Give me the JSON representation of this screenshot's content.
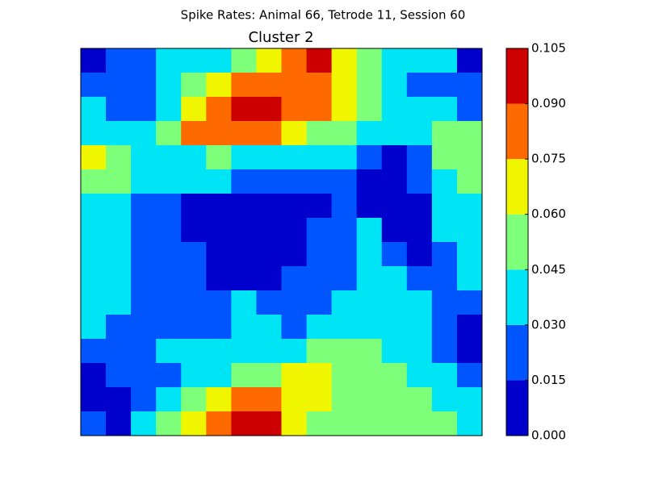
{
  "chart_data": {
    "type": "contourf",
    "suptitle": "Spike Rates: Animal 66, Tetrode 11, Session 60",
    "title": "Cluster 2",
    "levels": [
      {
        "value": 0,
        "label": "0.000"
      },
      {
        "value": 0.015,
        "label": "0.015"
      },
      {
        "value": 0.03,
        "label": "0.030"
      },
      {
        "value": 0.045,
        "label": "0.045"
      },
      {
        "value": 0.06,
        "label": "0.060"
      },
      {
        "value": 0.075,
        "label": "0.075"
      },
      {
        "value": 0.09,
        "label": "0.090"
      },
      {
        "value": 0.105,
        "label": "0.105"
      }
    ],
    "colors": [
      "#0000cc",
      "#0055ff",
      "#00e5f5",
      "#7dff7a",
      "#f0f500",
      "#ff6a00",
      "#cc0000"
    ],
    "z": [
      [
        0.0075,
        0.0225,
        0.0225,
        0.0375,
        0.0375,
        0.0375,
        0.0525,
        0.0675,
        0.0825,
        0.0975,
        0.0675,
        0.0525,
        0.0375,
        0.0375,
        0.0375,
        0.0075
      ],
      [
        0.0225,
        0.0225,
        0.0225,
        0.0375,
        0.0525,
        0.0675,
        0.0825,
        0.0825,
        0.0825,
        0.0825,
        0.0675,
        0.0525,
        0.0375,
        0.0225,
        0.0225,
        0.0225
      ],
      [
        0.0375,
        0.0225,
        0.0225,
        0.0375,
        0.0675,
        0.0825,
        0.0975,
        0.0975,
        0.0825,
        0.0825,
        0.0675,
        0.0525,
        0.0375,
        0.0375,
        0.0375,
        0.0225
      ],
      [
        0.0375,
        0.0375,
        0.0375,
        0.0525,
        0.0825,
        0.0825,
        0.0825,
        0.0825,
        0.0675,
        0.0525,
        0.0525,
        0.0375,
        0.0375,
        0.0375,
        0.0525,
        0.0525
      ],
      [
        0.0675,
        0.0525,
        0.0375,
        0.0375,
        0.0375,
        0.0525,
        0.0375,
        0.0375,
        0.0375,
        0.0375,
        0.0375,
        0.0225,
        0.0075,
        0.0225,
        0.0525,
        0.0525
      ],
      [
        0.0525,
        0.0525,
        0.0375,
        0.0375,
        0.0375,
        0.0375,
        0.0225,
        0.0225,
        0.0225,
        0.0225,
        0.0225,
        0.0075,
        0.0075,
        0.0225,
        0.0375,
        0.0525
      ],
      [
        0.0375,
        0.0375,
        0.0225,
        0.0225,
        0.0075,
        0.0075,
        0.0075,
        0.0075,
        0.0075,
        0.0075,
        0.0225,
        0.0075,
        0.0075,
        0.0075,
        0.0375,
        0.0375
      ],
      [
        0.0375,
        0.0375,
        0.0225,
        0.0225,
        0.0075,
        0.0075,
        0.0075,
        0.0075,
        0.0075,
        0.0225,
        0.0225,
        0.0375,
        0.0075,
        0.0075,
        0.0375,
        0.0375
      ],
      [
        0.0375,
        0.0375,
        0.0225,
        0.0225,
        0.0225,
        0.0075,
        0.0075,
        0.0075,
        0.0075,
        0.0225,
        0.0225,
        0.0375,
        0.0225,
        0.0075,
        0.0225,
        0.0375
      ],
      [
        0.0375,
        0.0375,
        0.0225,
        0.0225,
        0.0225,
        0.0075,
        0.0075,
        0.0075,
        0.0225,
        0.0225,
        0.0225,
        0.0375,
        0.0375,
        0.0225,
        0.0225,
        0.0375
      ],
      [
        0.0375,
        0.0375,
        0.0225,
        0.0225,
        0.0225,
        0.0225,
        0.0375,
        0.0225,
        0.0225,
        0.0225,
        0.0375,
        0.0375,
        0.0375,
        0.0375,
        0.0225,
        0.0225
      ],
      [
        0.0375,
        0.0225,
        0.0225,
        0.0225,
        0.0225,
        0.0225,
        0.0375,
        0.0375,
        0.0225,
        0.0375,
        0.0375,
        0.0375,
        0.0375,
        0.0375,
        0.0225,
        0.0075
      ],
      [
        0.0225,
        0.0225,
        0.0225,
        0.0375,
        0.0375,
        0.0375,
        0.0375,
        0.0375,
        0.0375,
        0.0525,
        0.0525,
        0.0525,
        0.0375,
        0.0375,
        0.0225,
        0.0075
      ],
      [
        0.0075,
        0.0225,
        0.0225,
        0.0225,
        0.0375,
        0.0375,
        0.0525,
        0.0525,
        0.0675,
        0.0675,
        0.0525,
        0.0525,
        0.0525,
        0.0375,
        0.0375,
        0.0225
      ],
      [
        0.0075,
        0.0075,
        0.0225,
        0.0375,
        0.0525,
        0.0675,
        0.0825,
        0.0825,
        0.0675,
        0.0675,
        0.0525,
        0.0525,
        0.0525,
        0.0525,
        0.0375,
        0.0375
      ],
      [
        0.0225,
        0.0075,
        0.0375,
        0.0525,
        0.0675,
        0.0825,
        0.0975,
        0.0975,
        0.0675,
        0.0525,
        0.0525,
        0.0525,
        0.0525,
        0.0525,
        0.0525,
        0.0375
      ]
    ]
  }
}
